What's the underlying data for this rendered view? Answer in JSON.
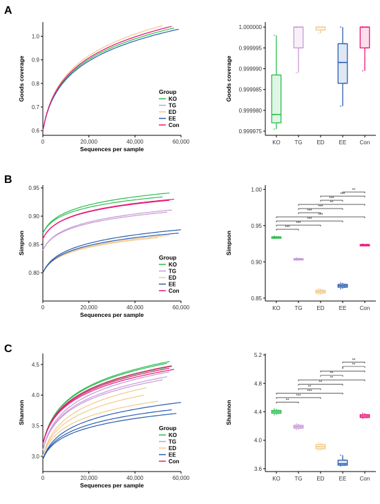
{
  "groups": [
    {
      "name": "KO",
      "color": "#2bbd4f"
    },
    {
      "name": "TG",
      "color": "#c79ad7"
    },
    {
      "name": "ED",
      "color": "#f2c98a"
    },
    {
      "name": "EE",
      "color": "#2a5db0"
    },
    {
      "name": "Con",
      "color": "#e8197a"
    }
  ],
  "panels": [
    {
      "label": "A"
    },
    {
      "label": "B"
    },
    {
      "label": "C"
    }
  ],
  "chart_data": [
    {
      "type": "line",
      "panel": "A",
      "xlabel": "Sequences per sample",
      "ylabel": "Goods coverage",
      "xlim": [
        0,
        60000
      ],
      "ylim": [
        0.58,
        1.06
      ],
      "xticks": [
        0,
        20000,
        40000,
        60000
      ],
      "xtick_labels": [
        "0",
        "20,000",
        "40,000",
        "60,000"
      ],
      "yticks": [
        0.6,
        0.7,
        0.8,
        0.9,
        1.0
      ],
      "ytick_labels": [
        "0.6",
        "0.7",
        "0.8",
        "0.9",
        "1.0"
      ],
      "legend_title": "Group",
      "legend_position": "bottom-right",
      "curves": [
        {
          "group": "KO",
          "y0": 0.6,
          "yend": 1.035,
          "xend": 57000
        },
        {
          "group": "TG",
          "y0": 0.6,
          "yend": 1.04,
          "xend": 55000
        },
        {
          "group": "ED",
          "y0": 0.6,
          "yend": 1.045,
          "xend": 52000
        },
        {
          "group": "EE",
          "y0": 0.6,
          "yend": 1.03,
          "xend": 59000
        },
        {
          "group": "Con",
          "y0": 0.6,
          "yend": 1.042,
          "xend": 56000
        }
      ]
    },
    {
      "type": "box",
      "panel": "A",
      "ylabel": "Goods coverage",
      "categories": [
        "KO",
        "TG",
        "ED",
        "EE",
        "Con"
      ],
      "ylim": [
        0.999974,
        1.0000012
      ],
      "yticks": [
        0.999975,
        0.99998,
        0.999985,
        0.99999,
        0.999995,
        1.0
      ],
      "ytick_labels": [
        "0.999975",
        "0.999980",
        "0.999985",
        "0.999990",
        "0.999995",
        "1.000000"
      ],
      "boxes": [
        {
          "group": "KO",
          "min": 0.9999755,
          "q1": 0.999977,
          "median": 0.999979,
          "q3": 0.9999885,
          "max": 0.999998
        },
        {
          "group": "TG",
          "min": 0.999989,
          "q1": 0.999995,
          "median": 1.0,
          "q3": 1.0,
          "max": 1.0
        },
        {
          "group": "ED",
          "min": 0.9999985,
          "q1": 0.9999993,
          "median": 1.0,
          "q3": 1.0,
          "max": 1.0
        },
        {
          "group": "EE",
          "min": 0.999981,
          "q1": 0.9999865,
          "median": 0.9999915,
          "q3": 0.999996,
          "max": 1.0
        },
        {
          "group": "Con",
          "min": 0.9999895,
          "q1": 0.999995,
          "median": 1.0,
          "q3": 1.0,
          "max": 1.0
        }
      ],
      "significance": []
    },
    {
      "type": "line",
      "panel": "B",
      "xlabel": "Sequences per sample",
      "ylabel": "Simpson",
      "xlim": [
        0,
        60000
      ],
      "ylim": [
        0.75,
        0.955
      ],
      "xticks": [
        0,
        20000,
        40000,
        60000
      ],
      "xtick_labels": [
        "0",
        "20,000",
        "40,000",
        "60,000"
      ],
      "yticks": [
        0.8,
        0.85,
        0.9,
        0.95
      ],
      "ytick_labels": [
        "0.80",
        "0.85",
        "0.90",
        "0.95"
      ],
      "legend_title": "Group",
      "legend_position": "bottom-right",
      "curves": [
        {
          "group": "KO",
          "y0": 0.87,
          "yend": 0.941,
          "xend": 55000
        },
        {
          "group": "KO",
          "y0": 0.87,
          "yend": 0.934,
          "xend": 52000
        },
        {
          "group": "TG",
          "y0": 0.84,
          "yend": 0.911,
          "xend": 56000
        },
        {
          "group": "TG",
          "y0": 0.84,
          "yend": 0.907,
          "xend": 54000
        },
        {
          "group": "ED",
          "y0": 0.8,
          "yend": 0.866,
          "xend": 55000
        },
        {
          "group": "ED",
          "y0": 0.8,
          "yend": 0.862,
          "xend": 50000
        },
        {
          "group": "EE",
          "y0": 0.8,
          "yend": 0.876,
          "xend": 60000
        },
        {
          "group": "EE",
          "y0": 0.8,
          "yend": 0.87,
          "xend": 59000
        },
        {
          "group": "Con",
          "y0": 0.86,
          "yend": 0.93,
          "xend": 57000
        },
        {
          "group": "Con",
          "y0": 0.86,
          "yend": 0.928,
          "xend": 55000
        }
      ]
    },
    {
      "type": "box",
      "panel": "B",
      "ylabel": "Simpson",
      "categories": [
        "KO",
        "TG",
        "ED",
        "EE",
        "Con"
      ],
      "ylim": [
        0.846,
        1.006
      ],
      "yticks": [
        0.85,
        0.9,
        0.95,
        1.0
      ],
      "ytick_labels": [
        "0.85",
        "0.90",
        "0.95",
        "1.00"
      ],
      "boxes": [
        {
          "group": "KO",
          "min": 0.9325,
          "q1": 0.9335,
          "median": 0.934,
          "q3": 0.9345,
          "max": 0.9355
        },
        {
          "group": "TG",
          "min": 0.9025,
          "q1": 0.9035,
          "median": 0.904,
          "q3": 0.9045,
          "max": 0.9055
        },
        {
          "group": "ED",
          "min": 0.855,
          "q1": 0.857,
          "median": 0.859,
          "q3": 0.861,
          "max": 0.863
        },
        {
          "group": "EE",
          "min": 0.863,
          "q1": 0.865,
          "median": 0.867,
          "q3": 0.869,
          "max": 0.871
        },
        {
          "group": "Con",
          "min": 0.9225,
          "q1": 0.923,
          "median": 0.9235,
          "q3": 0.924,
          "max": 0.9245
        }
      ],
      "significance": [
        {
          "from": "KO",
          "to": "TG",
          "label": "***"
        },
        {
          "from": "KO",
          "to": "ED",
          "label": "***"
        },
        {
          "from": "KO",
          "to": "EE",
          "label": "***"
        },
        {
          "from": "KO",
          "to": "Con",
          "label": "***"
        },
        {
          "from": "TG",
          "to": "ED",
          "label": "***"
        },
        {
          "from": "TG",
          "to": "EE",
          "label": "***"
        },
        {
          "from": "TG",
          "to": "Con",
          "label": "**"
        },
        {
          "from": "ED",
          "to": "EE",
          "label": "***"
        },
        {
          "from": "ED",
          "to": "Con",
          "label": "***"
        },
        {
          "from": "EE",
          "to": "Con",
          "label": "**"
        }
      ]
    },
    {
      "type": "line",
      "panel": "C",
      "xlabel": "Sequences per sample",
      "ylabel": "Shannon",
      "xlim": [
        0,
        60000
      ],
      "ylim": [
        2.75,
        4.68
      ],
      "xticks": [
        0,
        20000,
        40000,
        60000
      ],
      "xtick_labels": [
        "0",
        "20,000",
        "40,000",
        "60,000"
      ],
      "yticks": [
        3.0,
        3.5,
        4.0,
        4.5
      ],
      "ytick_labels": [
        "3.0",
        "3.5",
        "4.0",
        "4.5"
      ],
      "legend_title": "Group",
      "legend_position": "bottom-right",
      "curves": [
        {
          "group": "KO",
          "y0": 3.2,
          "yend": 4.55,
          "xend": 55000
        },
        {
          "group": "KO",
          "y0": 3.2,
          "yend": 4.52,
          "xend": 54000
        },
        {
          "group": "KO",
          "y0": 3.2,
          "yend": 4.47,
          "xend": 56000
        },
        {
          "group": "TG",
          "y0": 3.1,
          "yend": 4.38,
          "xend": 55000
        },
        {
          "group": "TG",
          "y0": 3.1,
          "yend": 4.3,
          "xend": 54000
        },
        {
          "group": "TG",
          "y0": 3.1,
          "yend": 4.25,
          "xend": 52000
        },
        {
          "group": "ED",
          "y0": 3.0,
          "yend": 4.12,
          "xend": 45000
        },
        {
          "group": "ED",
          "y0": 3.0,
          "yend": 4.0,
          "xend": 44000
        },
        {
          "group": "ED",
          "y0": 3.0,
          "yend": 3.9,
          "xend": 50000
        },
        {
          "group": "EE",
          "y0": 2.95,
          "yend": 3.88,
          "xend": 60000
        },
        {
          "group": "EE",
          "y0": 2.95,
          "yend": 3.76,
          "xend": 56000
        },
        {
          "group": "EE",
          "y0": 2.95,
          "yend": 3.7,
          "xend": 58000
        },
        {
          "group": "Con",
          "y0": 3.2,
          "yend": 4.48,
          "xend": 56000
        },
        {
          "group": "Con",
          "y0": 3.2,
          "yend": 4.44,
          "xend": 55000
        },
        {
          "group": "Con",
          "y0": 3.2,
          "yend": 4.42,
          "xend": 57000
        }
      ]
    },
    {
      "type": "box",
      "panel": "C",
      "ylabel": "Shannon",
      "categories": [
        "KO",
        "TG",
        "ED",
        "EE",
        "Con"
      ],
      "ylim": [
        3.56,
        5.22
      ],
      "yticks": [
        3.6,
        4.0,
        4.4,
        4.8,
        5.2
      ],
      "ytick_labels": [
        "3.6",
        "4.0",
        "4.4",
        "4.8",
        "5.2"
      ],
      "boxes": [
        {
          "group": "KO",
          "min": 4.36,
          "q1": 4.38,
          "median": 4.4,
          "q3": 4.42,
          "max": 4.44
        },
        {
          "group": "TG",
          "min": 4.15,
          "q1": 4.17,
          "median": 4.19,
          "q3": 4.21,
          "max": 4.23
        },
        {
          "group": "ED",
          "min": 3.86,
          "q1": 3.88,
          "median": 3.91,
          "q3": 3.94,
          "max": 3.96
        },
        {
          "group": "EE",
          "min": 3.64,
          "q1": 3.65,
          "median": 3.67,
          "q3": 3.72,
          "max": 3.79
        },
        {
          "group": "Con",
          "min": 4.31,
          "q1": 4.32,
          "median": 4.34,
          "q3": 4.36,
          "max": 4.38
        }
      ],
      "significance": [
        {
          "from": "KO",
          "to": "TG",
          "label": "**"
        },
        {
          "from": "KO",
          "to": "ED",
          "label": "***"
        },
        {
          "from": "KO",
          "to": "EE",
          "label": "***"
        },
        {
          "from": "TG",
          "to": "ED",
          "label": "**"
        },
        {
          "from": "TG",
          "to": "EE",
          "label": "**"
        },
        {
          "from": "TG",
          "to": "Con",
          "label": "**"
        },
        {
          "from": "ED",
          "to": "EE",
          "label": "**"
        },
        {
          "from": "ED",
          "to": "Con",
          "label": "*"
        },
        {
          "from": "EE",
          "to": "Con",
          "label": "**"
        },
        {
          "from": "EE",
          "to": "Con",
          "label": "**"
        }
      ]
    }
  ]
}
